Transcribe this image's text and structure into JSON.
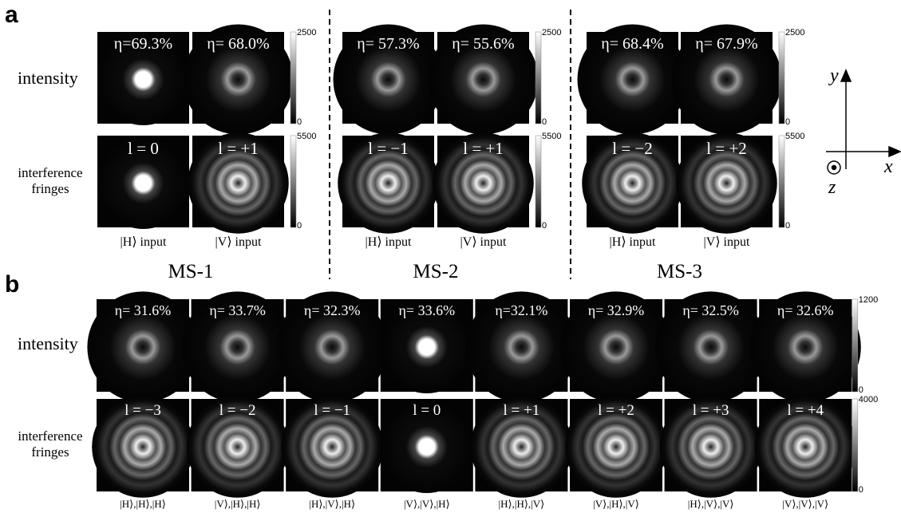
{
  "panel_a": {
    "label": "a",
    "row_labels": [
      "intensity",
      "interference fringes"
    ],
    "groups": [
      {
        "name": "MS-1",
        "intensity_colorbar": [
          "2500",
          "0"
        ],
        "fringes_colorbar": [
          "5500",
          "0"
        ],
        "columns": [
          {
            "efficiency": "η=69.3%",
            "charge": "l = 0",
            "input": "|H⟩ input"
          },
          {
            "efficiency": "η= 68.0%",
            "charge": "l = +1",
            "input": "|V⟩ input"
          }
        ]
      },
      {
        "name": "MS-2",
        "intensity_colorbar": [
          "2500",
          "0"
        ],
        "fringes_colorbar": [
          "5500",
          "0"
        ],
        "columns": [
          {
            "efficiency": "η= 57.3%",
            "charge": "l = −1",
            "input": "|H⟩ input"
          },
          {
            "efficiency": "η= 55.6%",
            "charge": "l = +1",
            "input": "|V⟩ input"
          }
        ]
      },
      {
        "name": "MS-3",
        "intensity_colorbar": [
          "2500",
          "0"
        ],
        "fringes_colorbar": [
          "5500",
          "0"
        ],
        "columns": [
          {
            "efficiency": "η= 68.4%",
            "charge": "l = −2",
            "input": "|H⟩ input"
          },
          {
            "efficiency": "η= 67.9%",
            "charge": "l = +2",
            "input": "|V⟩ input"
          }
        ]
      }
    ]
  },
  "panel_b": {
    "label": "b",
    "row_labels": [
      "intensity",
      "interference fringes"
    ],
    "intensity_colorbar": [
      "1200",
      "0"
    ],
    "fringes_colorbar": [
      "4000",
      "0"
    ],
    "columns": [
      {
        "efficiency": "η= 31.6%",
        "charge": "l = −3",
        "input": "|H⟩,|H⟩,|H⟩"
      },
      {
        "efficiency": "η= 33.7%",
        "charge": "l = −2",
        "input": "|V⟩,|H⟩,|H⟩"
      },
      {
        "efficiency": "η= 32.3%",
        "charge": "l = −1",
        "input": "|H⟩,|V⟩,|H⟩"
      },
      {
        "efficiency": "η= 33.6%",
        "charge": "l = 0",
        "input": "|V⟩,|V⟩,|H⟩"
      },
      {
        "efficiency": "η=32.1%",
        "charge": "l = +1",
        "input": "|H⟩,|H⟩,|V⟩"
      },
      {
        "efficiency": "η= 32.9%",
        "charge": "l = +2",
        "input": "|V⟩,|H⟩,|V⟩"
      },
      {
        "efficiency": "η= 32.5%",
        "charge": "l = +3",
        "input": "|H⟩,|V⟩,|V⟩"
      },
      {
        "efficiency": "η= 32.6%",
        "charge": "l = +4",
        "input": "|V⟩,|V⟩,|V⟩"
      }
    ]
  },
  "axes": {
    "x": "x",
    "y": "y",
    "z": "z"
  }
}
